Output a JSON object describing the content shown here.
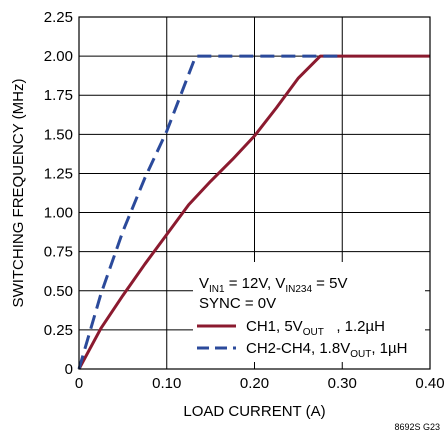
{
  "chart_data": {
    "type": "line",
    "title": "",
    "xlabel": "LOAD CURRENT (A)",
    "ylabel": "SWITCHING FREQUENCY (MHz)",
    "xlim": [
      0,
      0.4
    ],
    "ylim": [
      0,
      2.25
    ],
    "x_ticks": [
      "0",
      "0.10",
      "0.20",
      "0.30",
      "0.40"
    ],
    "y_ticks": [
      "0",
      "0.25",
      "0.50",
      "0.75",
      "1.00",
      "1.25",
      "1.50",
      "1.75",
      "2.00",
      "2.25"
    ],
    "grid": true,
    "legend_position": "bottom-right",
    "conditions": {
      "line1": {
        "v1": "V",
        "s1": "IN1",
        "t1": " = 12V, V",
        "s2": "IN234",
        "t2": " = 5V"
      },
      "line2": "SYNC = 0V"
    },
    "series": [
      {
        "name": "CH1, 5VOUT, 1.2µH",
        "legend": {
          "pre": "CH1, 5V",
          "sub": "OUT",
          "post": "   , 1.2µH"
        },
        "color": "#8b1a2f",
        "style": "solid",
        "x": [
          0,
          0.025,
          0.05,
          0.075,
          0.1,
          0.125,
          0.15,
          0.175,
          0.2,
          0.225,
          0.25,
          0.275,
          0.3,
          0.35,
          0.4
        ],
        "y": [
          0,
          0.26,
          0.47,
          0.67,
          0.86,
          1.05,
          1.2,
          1.34,
          1.49,
          1.67,
          1.86,
          2.0,
          2.0,
          2.0,
          2.0
        ]
      },
      {
        "name": "CH2-CH4, 1.8VOUT, 1µH",
        "legend": {
          "pre": "CH2-CH4, 1.8V",
          "sub": "OUT",
          "post": ", 1µH"
        },
        "color": "#2b4a9b",
        "style": "dashed",
        "x": [
          0,
          0.025,
          0.05,
          0.075,
          0.1,
          0.133,
          0.2,
          0.3
        ],
        "y": [
          0,
          0.48,
          0.88,
          1.22,
          1.52,
          2.0,
          2.0,
          2.0
        ]
      }
    ],
    "figure_id": "8692S G23"
  }
}
